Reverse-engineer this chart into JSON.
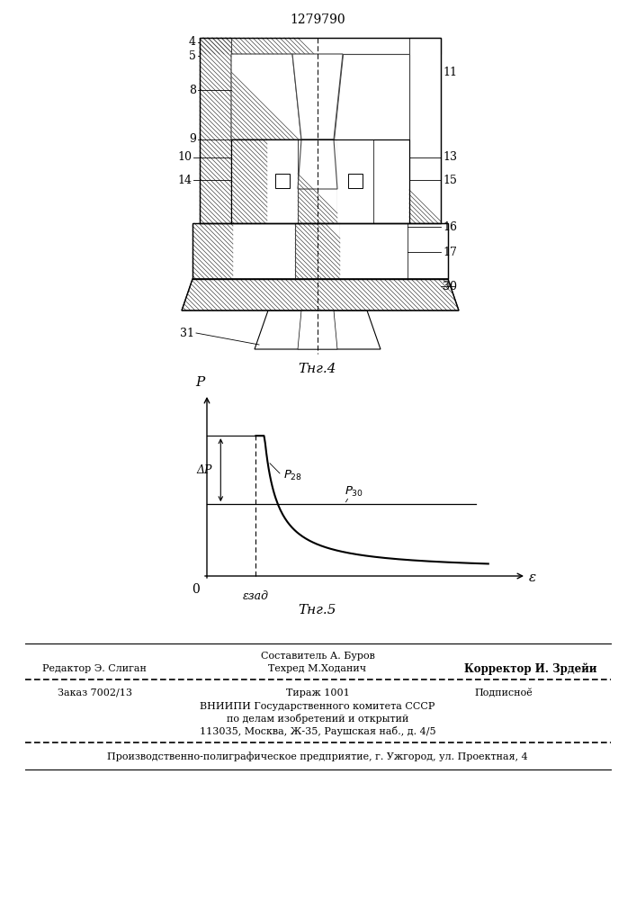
{
  "patent_number": "1279790",
  "fig4_caption": "Τнг.4",
  "fig5_caption": "Τнг.5",
  "fig4_labels_left": [
    "4",
    "5",
    "8",
    "9",
    "10",
    "14"
  ],
  "fig4_labels_right": [
    "11",
    "13",
    "15",
    "16",
    "17",
    "30"
  ],
  "fig4_label_31": "31",
  "footer_sostavitel": "Составитель А. Буров",
  "footer_redaktor": "Редактор Э. Слиган",
  "footer_tehred": "Техред М.Ходанич",
  "footer_korrektor": "Корректор И. Зрдейи",
  "footer_zakaz": "Заказ 7002/13",
  "footer_tirazh": "Тираж 1001",
  "footer_podpisnoe": "Подписноӗ",
  "footer_vniipii": "ВНИИПИ Государственного комитета СССР",
  "footer_po_delam": "по делам изобретений и открытий",
  "footer_address": "113035, Москва, Ж-35, Раушская наб., д. 4/5",
  "footer_predpriyatie": "Производственно-полиграфическое предприятие, г. Ужгород, ул. Проектная, 4",
  "bg_color": "#ffffff",
  "hatch_color": "#444444",
  "line_color": "#000000",
  "text_color": "#000000"
}
